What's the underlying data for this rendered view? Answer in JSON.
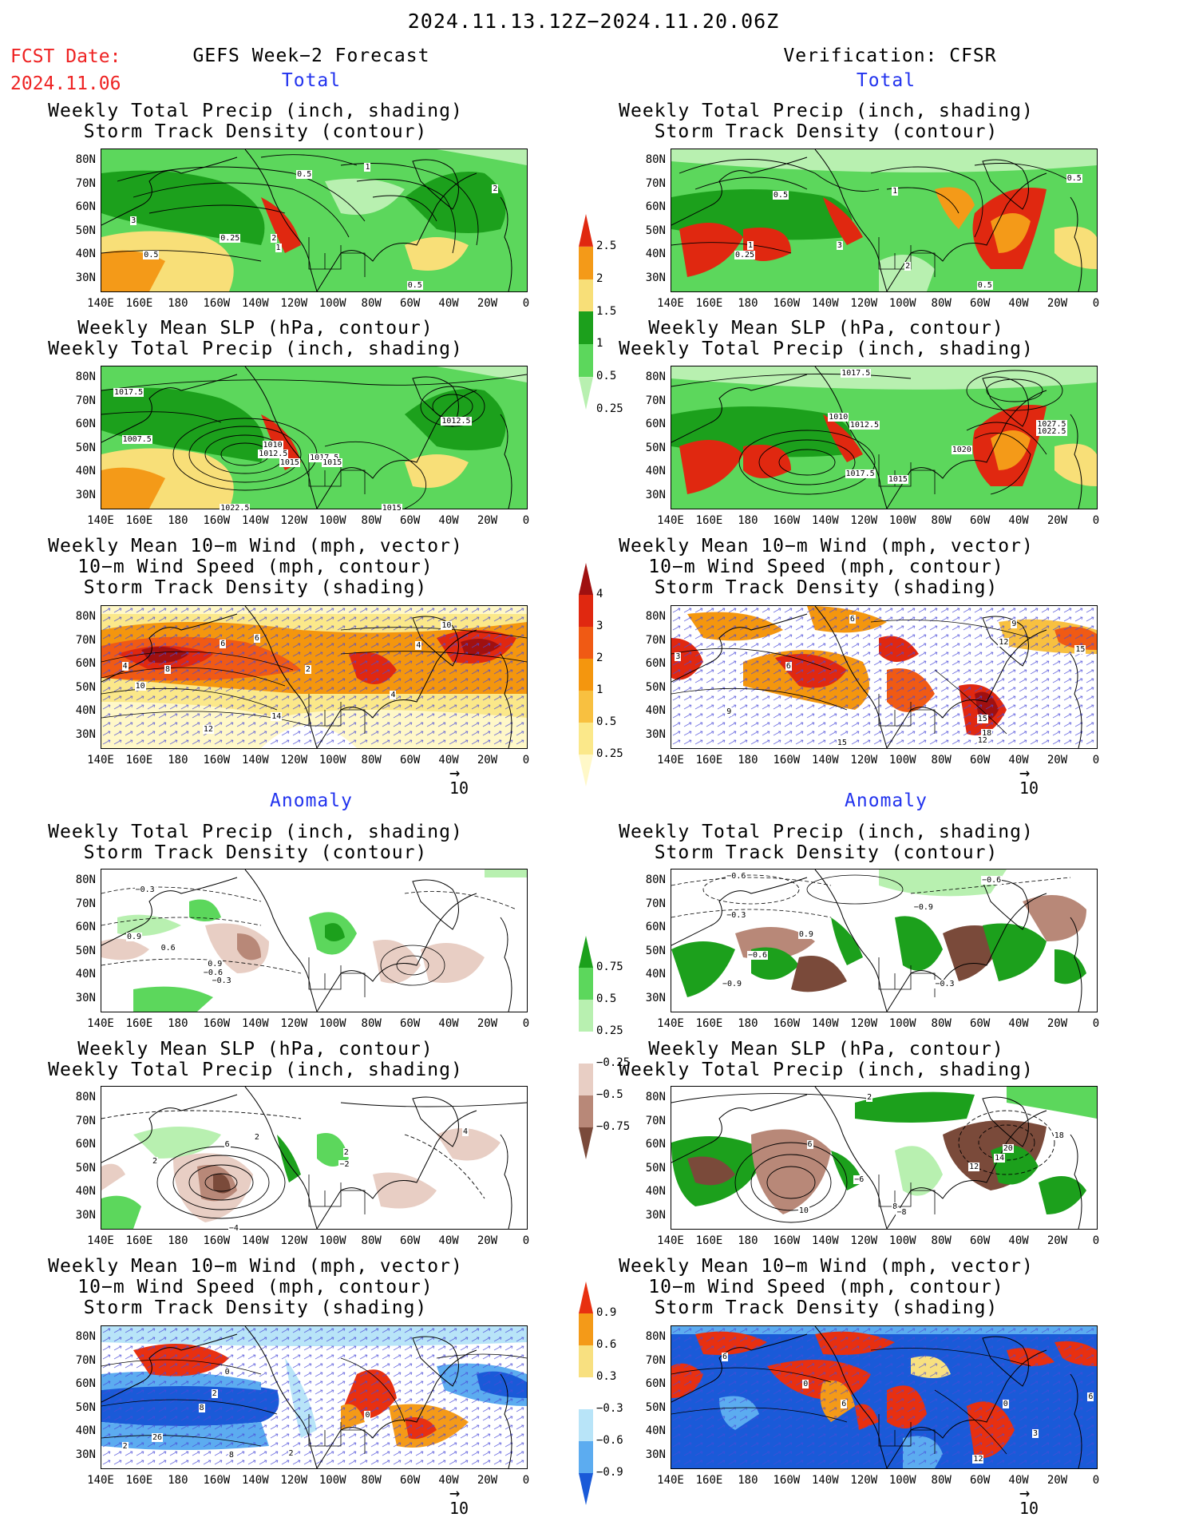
{
  "header": {
    "date_range": "2024.11.13.12Z−2024.11.20.06Z",
    "fcst_date_label": "FCST Date:",
    "fcst_date_value": "2024.11.06",
    "left_title": "GEFS Week−2 Forecast",
    "right_title": "Verification: CFSR"
  },
  "sections": {
    "total": "Total",
    "anomaly": "Anomaly"
  },
  "panel_titles": {
    "precip_storm": [
      "Weekly Total Precip (inch, shading)",
      "Storm Track Density (contour)"
    ],
    "slp_precip": [
      "Weekly Mean SLP (hPa, contour)",
      "Weekly Total Precip (inch, shading)"
    ],
    "wind_storm": [
      "Weekly Mean 10−m Wind (mph, vector)",
      "10−m Wind Speed (mph, contour)",
      "Storm Track Density (shading)"
    ]
  },
  "axes": {
    "y_ticks": [
      "80N",
      "70N",
      "60N",
      "50N",
      "40N",
      "30N"
    ],
    "x_ticks": [
      "140E",
      "160E",
      "180",
      "160W",
      "140W",
      "120W",
      "100W",
      "80W",
      "60W",
      "40W",
      "20W",
      "0"
    ]
  },
  "vector_reference": "10",
  "colorbars": {
    "precip_total": {
      "labels": [
        "2.5",
        "2",
        "1.5",
        "1",
        "0.5",
        "0.25"
      ],
      "colors": [
        "#e02810",
        "#f49a18",
        "#f8df78",
        "#1ca01c",
        "#5cd75c",
        "#b8f0b0"
      ]
    },
    "storm_total": {
      "labels": [
        "4",
        "3",
        "2",
        "1",
        "0.5",
        "0.25"
      ],
      "colors": [
        "#a01010",
        "#e02810",
        "#f05a14",
        "#f4960e",
        "#f8c040",
        "#fbe88a",
        "#fff8c8"
      ]
    },
    "precip_anom": {
      "labels": [
        "0.75",
        "0.5",
        "0.25",
        "−0.25",
        "−0.5",
        "−0.75"
      ],
      "colors": [
        "#1ca01c",
        "#5cd75c",
        "#b8f0b0",
        "#ffffff",
        "#e8cec4",
        "#b88878",
        "#7a4a3a"
      ]
    },
    "storm_anom": {
      "labels": [
        "0.9",
        "0.6",
        "0.3",
        "−0.3",
        "−0.6",
        "−0.9"
      ],
      "colors": [
        "#e83010",
        "#f49a18",
        "#f8e080",
        "#ffffff",
        "#b8e4f8",
        "#5cacf0",
        "#1a5ad8"
      ]
    }
  },
  "contour_labels": {
    "fc_total_precip": [
      "0.5",
      "1",
      "2",
      "3",
      "0.25",
      "0.5",
      "2",
      "1",
      "0.5"
    ],
    "vr_total_precip": [
      "0.5",
      "1",
      "0.5",
      "1",
      "0.25",
      "3",
      "2",
      "0.5"
    ],
    "fc_total_slp": [
      "1017.5",
      "1007.5",
      "1012.5",
      "1010",
      "1012.5",
      "1015",
      "1017.5",
      "1015",
      "1022.5",
      "1015"
    ],
    "vr_total_slp": [
      "1017.5",
      "1010",
      "1012.5",
      "1017.5",
      "1015",
      "1020",
      "1027.5",
      "1022.5"
    ],
    "fc_total_wind": [
      "4",
      "6",
      "8",
      "10",
      "12",
      "14",
      "2",
      "4",
      "10",
      "6",
      "4"
    ],
    "vr_total_wind": [
      "3",
      "6",
      "6",
      "9",
      "12",
      "15",
      "18",
      "15",
      "12",
      "9",
      "15"
    ],
    "fc_anom_precip": [
      "−0.3",
      "0.9",
      "0.6",
      "−0.6",
      "0.9",
      "−0.3"
    ],
    "vr_anom_precip": [
      "−0.6",
      "−0.3",
      "0.9",
      "−0.6",
      "−0.9",
      "−0.9",
      "−0.6",
      "−0.3"
    ],
    "fc_anom_slp": [
      "2",
      "6",
      "2",
      "2",
      "−2",
      "4",
      "−4"
    ],
    "vr_anom_slp": [
      "2",
      "6",
      "−6",
      "10",
      "8",
      "12",
      "14",
      "18",
      "20",
      "−8"
    ],
    "fc_anom_wind": [
      "0",
      "2",
      "8",
      "26",
      "2",
      "0",
      "8",
      "2"
    ],
    "vr_anom_wind": [
      "6",
      "0",
      "0",
      "6",
      "12",
      "3",
      "6"
    ]
  }
}
